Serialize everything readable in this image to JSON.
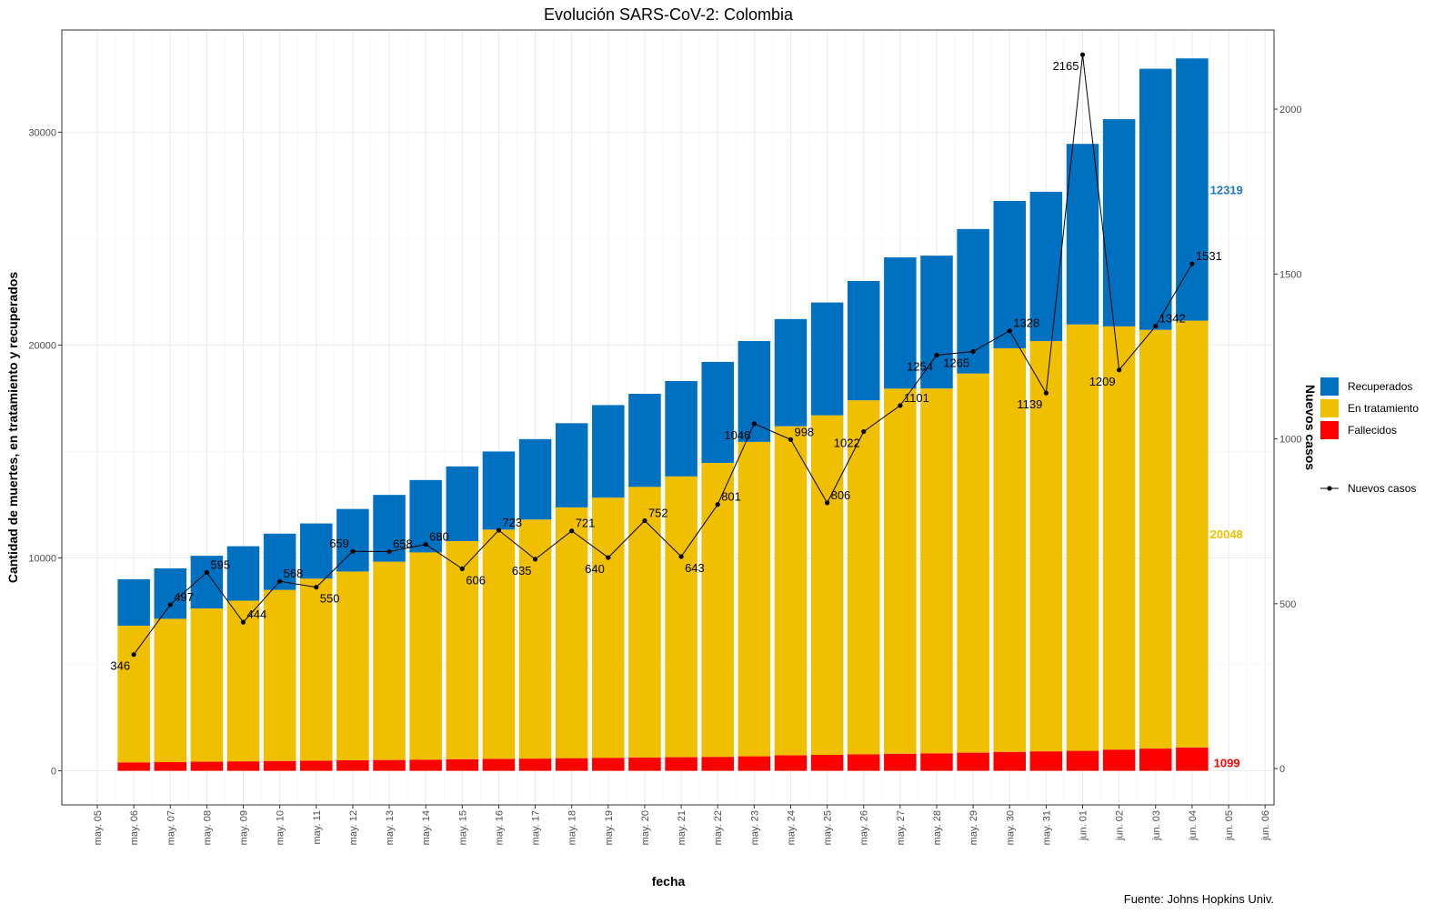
{
  "chart_data": {
    "type": "bar",
    "title": "Evolución SARS-CoV-2: Colombia",
    "xlabel": "fecha",
    "ylabel": "Cantidad de muertes, en tratamiento y recuperados",
    "ylabel_right": "Nuevos casos",
    "caption": "Fuente: Johns Hopkins Univ.",
    "stacked": true,
    "grid": true,
    "legend_position": "right",
    "ylim": [
      -1600,
      34800
    ],
    "y2lim": [
      -110,
      2240
    ],
    "y_ticks": [
      0,
      10000,
      20000,
      30000
    ],
    "y2_ticks": [
      0,
      500,
      1000,
      1500,
      2000
    ],
    "x_tick_labels": [
      "may. 05",
      "may. 06",
      "may. 07",
      "may. 08",
      "may. 09",
      "may. 10",
      "may. 11",
      "may. 12",
      "may. 13",
      "may. 14",
      "may. 15",
      "may. 16",
      "may. 17",
      "may. 18",
      "may. 19",
      "may. 20",
      "may. 21",
      "may. 22",
      "may. 23",
      "may. 24",
      "may. 25",
      "may. 26",
      "may. 27",
      "may. 28",
      "may. 29",
      "may. 30",
      "may. 31",
      "jun. 01",
      "jun. 02",
      "jun. 03",
      "jun. 04",
      "jun. 05",
      "jun. 06"
    ],
    "categories": [
      "may. 06",
      "may. 07",
      "may. 08",
      "may. 09",
      "may. 10",
      "may. 11",
      "may. 12",
      "may. 13",
      "may. 14",
      "may. 15",
      "may. 16",
      "may. 17",
      "may. 18",
      "may. 19",
      "may. 20",
      "may. 21",
      "may. 22",
      "may. 23",
      "may. 24",
      "may. 25",
      "may. 26",
      "may. 27",
      "may. 28",
      "may. 29",
      "may. 30",
      "may. 31",
      "jun. 01",
      "jun. 02",
      "jun. 03",
      "jun. 04"
    ],
    "series": [
      {
        "name": "Fallecidos",
        "color": "#ff0000",
        "values": [
          397,
          407,
          428,
          445,
          463,
          479,
          493,
          509,
          525,
          546,
          562,
          574,
          594,
          613,
          628,
          640,
          655,
          682,
          727,
          750,
          776,
          803,
          821,
          853,
          890,
          916,
          939,
          997,
          1045,
          1099
        ]
      },
      {
        "name": "En tratamiento",
        "color": "#f0c000",
        "values": [
          6421,
          6734,
          7200,
          7548,
          8035,
          8550,
          8870,
          9315,
          9735,
          10245,
          10770,
          11230,
          11780,
          12220,
          12710,
          13190,
          13810,
          14770,
          15460,
          15950,
          16630,
          17150,
          17140,
          17810,
          18960,
          19270,
          20030,
          19880,
          19670,
          20048
        ]
      },
      {
        "name": "Recuperados",
        "color": "#0070c0",
        "values": [
          2182,
          2369,
          2474,
          2557,
          2642,
          2591,
          2937,
          3136,
          3400,
          3509,
          3668,
          3776,
          3956,
          4347,
          4372,
          4480,
          4745,
          4738,
          5033,
          5300,
          5604,
          6167,
          6239,
          6787,
          6920,
          7014,
          8481,
          9733,
          12265,
          12319
        ]
      },
      {
        "name": "Nuevos casos",
        "type": "line",
        "axis": "right",
        "color": "#000000",
        "values": [
          346,
          497,
          595,
          444,
          568,
          550,
          659,
          658,
          680,
          606,
          723,
          635,
          721,
          640,
          752,
          643,
          801,
          1046,
          998,
          806,
          1022,
          1101,
          1254,
          1265,
          1328,
          1139,
          2165,
          1209,
          1342,
          1531
        ]
      }
    ],
    "end_labels": [
      {
        "text": "12319",
        "color": "#1f78c8"
      },
      {
        "text": "20048",
        "color": "#f0c000"
      },
      {
        "text": "1099",
        "color": "#ff0000"
      }
    ],
    "legend": [
      {
        "name": "Recuperados",
        "color": "#0070c0"
      },
      {
        "name": "En tratamiento",
        "color": "#f0c000"
      },
      {
        "name": "Fallecidos",
        "color": "#ff0000"
      }
    ],
    "legend_line": {
      "name": "Nuevos casos",
      "color": "#000000"
    }
  }
}
